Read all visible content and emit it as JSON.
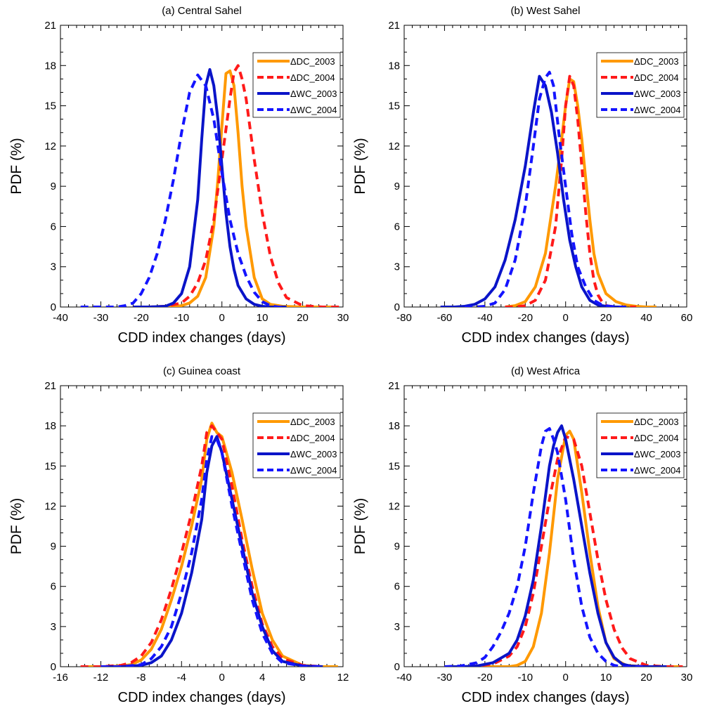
{
  "figure": {
    "series_names": [
      "ΔDC_2003",
      "ΔDC_2004",
      "ΔWC_2003",
      "ΔWC_2004"
    ],
    "colors": {
      "DC_2003": "#ff9900",
      "DC_2004": "#ff1a1a",
      "WC_2003": "#0a14c8",
      "WC_2004": "#1414ff"
    }
  },
  "chart_data": [
    {
      "type": "line",
      "title": "(a) Central Sahel",
      "xlabel": "CDD index changes  (days)",
      "ylabel": "PDF (%)",
      "xlim": [
        -40,
        30
      ],
      "ylim": [
        0,
        21
      ],
      "xticks": [
        -40,
        -30,
        -20,
        -10,
        0,
        10,
        20,
        30
      ],
      "yticks": [
        0,
        3,
        6,
        9,
        12,
        15,
        18,
        21
      ],
      "legend_position": "top-right",
      "series": [
        {
          "name": "ΔDC_2003",
          "style": "solid",
          "color": "#ff9900",
          "x": [
            -22,
            -18,
            -14,
            -10,
            -8,
            -6,
            -4,
            -2,
            -1,
            0,
            1,
            2,
            3,
            4,
            5,
            6,
            8,
            10,
            12,
            15,
            20,
            25,
            29
          ],
          "y": [
            0,
            0,
            0,
            0.1,
            0.3,
            0.8,
            2.2,
            6.0,
            9.5,
            13.5,
            17.4,
            17.6,
            16.5,
            13.0,
            9.0,
            6.0,
            2.2,
            0.6,
            0.2,
            0.05,
            0,
            0,
            0
          ]
        },
        {
          "name": "ΔDC_2004",
          "style": "dashed",
          "color": "#ff1a1a",
          "x": [
            -22,
            -18,
            -14,
            -10,
            -8,
            -6,
            -4,
            -2,
            0,
            2,
            3,
            4,
            5,
            6,
            8,
            10,
            12,
            14,
            16,
            20,
            25,
            29
          ],
          "y": [
            0,
            0,
            0.05,
            0.3,
            0.8,
            1.8,
            3.5,
            6.5,
            11.0,
            15.5,
            17.5,
            18.0,
            17.0,
            15.5,
            11.0,
            7.0,
            3.8,
            1.8,
            0.7,
            0.1,
            0,
            0
          ]
        },
        {
          "name": "ΔWC_2003",
          "style": "solid",
          "color": "#0a14c8",
          "x": [
            -22,
            -18,
            -14,
            -12,
            -10,
            -8,
            -6,
            -5,
            -4,
            -3,
            -2,
            -1,
            0,
            1,
            2,
            3,
            4,
            6,
            8,
            10,
            12,
            14,
            16
          ],
          "y": [
            0,
            0,
            0.05,
            0.3,
            1.0,
            3.0,
            8.0,
            12.5,
            16.5,
            17.7,
            16.5,
            14.0,
            10.5,
            7.0,
            4.5,
            2.8,
            1.6,
            0.6,
            0.2,
            0.05,
            0,
            0,
            0
          ]
        },
        {
          "name": "ΔWC_2004",
          "style": "dashed",
          "color": "#1414ff",
          "x": [
            -35,
            -30,
            -26,
            -24,
            -22,
            -20,
            -18,
            -16,
            -14,
            -12,
            -10,
            -8,
            -6,
            -4,
            -2,
            0,
            2,
            4,
            6,
            8,
            10,
            12,
            14,
            16
          ],
          "y": [
            0,
            0,
            0,
            0.1,
            0.3,
            1.0,
            2.2,
            4.0,
            6.5,
            9.5,
            13.0,
            16.0,
            17.3,
            16.5,
            14.0,
            10.0,
            6.5,
            4.0,
            2.3,
            1.1,
            0.4,
            0.1,
            0,
            0
          ]
        }
      ]
    },
    {
      "type": "line",
      "title": "(b) West Sahel",
      "xlabel": "CDD index changes (days)",
      "ylabel": "PDF (%)",
      "xlim": [
        -80,
        60
      ],
      "ylim": [
        0,
        21
      ],
      "xticks": [
        -80,
        -60,
        -40,
        -20,
        0,
        20,
        40,
        60
      ],
      "yticks": [
        0,
        3,
        6,
        9,
        12,
        15,
        18,
        21
      ],
      "legend_position": "top-right",
      "series": [
        {
          "name": "ΔDC_2003",
          "style": "solid",
          "color": "#ff9900",
          "x": [
            -30,
            -25,
            -20,
            -15,
            -10,
            -5,
            -2,
            0,
            2,
            4,
            6,
            8,
            10,
            12,
            14,
            16,
            20,
            25,
            30,
            35,
            40,
            45
          ],
          "y": [
            0,
            0.1,
            0.4,
            1.5,
            4.0,
            9.0,
            12.5,
            15.0,
            17.0,
            16.8,
            15.0,
            12.5,
            9.5,
            6.5,
            4.0,
            2.5,
            1.0,
            0.4,
            0.15,
            0.05,
            0,
            0
          ]
        },
        {
          "name": "ΔDC_2004",
          "style": "dashed",
          "color": "#ff1a1a",
          "x": [
            -30,
            -25,
            -20,
            -15,
            -10,
            -5,
            -2,
            0,
            2,
            4,
            6,
            8,
            10,
            12,
            14,
            16,
            18,
            20,
            25,
            30,
            35
          ],
          "y": [
            0,
            0,
            0.1,
            0.5,
            2.0,
            6.0,
            11.0,
            15.0,
            17.2,
            16.5,
            14.0,
            10.5,
            7.0,
            4.0,
            2.0,
            0.9,
            0.4,
            0.1,
            0,
            0,
            0
          ]
        },
        {
          "name": "ΔWC_2003",
          "style": "solid",
          "color": "#0a14c8",
          "x": [
            -62,
            -55,
            -50,
            -45,
            -40,
            -35,
            -30,
            -25,
            -20,
            -16,
            -13,
            -10,
            -7,
            -4,
            -1,
            2,
            5,
            8,
            12,
            16,
            20,
            25,
            30
          ],
          "y": [
            0,
            0,
            0.05,
            0.2,
            0.6,
            1.5,
            3.5,
            6.5,
            10.5,
            14.5,
            17.2,
            16.5,
            14.5,
            11.5,
            8.0,
            5.0,
            3.0,
            1.5,
            0.5,
            0.15,
            0.05,
            0,
            0
          ]
        },
        {
          "name": "ΔWC_2004",
          "style": "dashed",
          "color": "#1414ff",
          "x": [
            -50,
            -45,
            -40,
            -35,
            -30,
            -25,
            -20,
            -16,
            -13,
            -10,
            -8,
            -6,
            -3,
            0,
            3,
            6,
            10,
            14,
            18,
            22,
            26,
            30
          ],
          "y": [
            0,
            0,
            0.05,
            0.3,
            1.3,
            3.5,
            7.5,
            12.0,
            15.5,
            17.1,
            17.5,
            16.5,
            12.5,
            9.0,
            5.5,
            3.0,
            1.5,
            0.5,
            0.15,
            0.05,
            0,
            0
          ]
        }
      ]
    },
    {
      "type": "line",
      "title": "(c) Guinea coast",
      "xlabel": "CDD index changes (days)",
      "ylabel": "PDF (%)",
      "xlim": [
        -16,
        12
      ],
      "ylim": [
        0,
        21
      ],
      "xticks": [
        -16,
        -12,
        -8,
        -4,
        0,
        4,
        8,
        12
      ],
      "yticks": [
        0,
        3,
        6,
        9,
        12,
        15,
        18,
        21
      ],
      "legend_position": "top-right",
      "series": [
        {
          "name": "ΔDC_2003",
          "style": "solid",
          "color": "#ff9900",
          "x": [
            -14,
            -12,
            -10,
            -9,
            -8,
            -7,
            -6,
            -5,
            -4,
            -3,
            -2,
            -1.5,
            -1,
            -0.5,
            0,
            1,
            2,
            3,
            4,
            5,
            6,
            8,
            10,
            11.5
          ],
          "y": [
            0,
            0,
            0.05,
            0.15,
            0.5,
            1.3,
            2.8,
            5.0,
            7.5,
            10.5,
            14.0,
            17.0,
            18.2,
            17.5,
            17.2,
            14.5,
            11.0,
            7.3,
            4.0,
            2.0,
            0.8,
            0.1,
            0,
            0
          ]
        },
        {
          "name": "ΔDC_2004",
          "style": "dashed",
          "color": "#ff1a1a",
          "x": [
            -14,
            -12,
            -10,
            -9,
            -8,
            -7,
            -6,
            -5,
            -4,
            -3,
            -2,
            -1.5,
            -1,
            0,
            1,
            2,
            3,
            4,
            5,
            6,
            8,
            10
          ],
          "y": [
            0,
            0,
            0.1,
            0.3,
            0.8,
            1.8,
            3.5,
            5.8,
            8.5,
            11.5,
            15.0,
            17.5,
            18.0,
            17.0,
            13.5,
            9.5,
            6.0,
            3.2,
            1.5,
            0.6,
            0.1,
            0
          ]
        },
        {
          "name": "ΔWC_2003",
          "style": "solid",
          "color": "#0a14c8",
          "x": [
            -12,
            -10,
            -8,
            -7,
            -6,
            -5,
            -4,
            -3,
            -2,
            -1.5,
            -1,
            -0.5,
            0,
            1,
            2,
            3,
            4,
            5,
            6,
            8,
            10
          ],
          "y": [
            0,
            0,
            0.1,
            0.3,
            0.8,
            2.0,
            4.0,
            7.0,
            11.0,
            14.5,
            16.5,
            17.2,
            16.0,
            12.5,
            9.0,
            5.5,
            3.0,
            1.2,
            0.4,
            0.05,
            0
          ]
        },
        {
          "name": "ΔWC_2004",
          "style": "dashed",
          "color": "#1414ff",
          "x": [
            -12,
            -10,
            -8,
            -7,
            -6,
            -5,
            -4,
            -3,
            -2,
            -1.5,
            -1,
            -0.5,
            0,
            1,
            2,
            3,
            4,
            5,
            6,
            8,
            10
          ],
          "y": [
            0,
            0,
            0.15,
            0.6,
            1.5,
            3.0,
            5.5,
            8.5,
            12.5,
            15.5,
            17.2,
            17.0,
            16.0,
            12.0,
            8.5,
            5.0,
            2.5,
            1.0,
            0.3,
            0.05,
            0
          ]
        }
      ]
    },
    {
      "type": "line",
      "title": "(d) West Africa",
      "xlabel": "CDD index changes (days)",
      "ylabel": "PDF (%)",
      "xlim": [
        -40,
        30
      ],
      "ylim": [
        0,
        21
      ],
      "xticks": [
        -40,
        -30,
        -20,
        -10,
        0,
        10,
        20,
        30
      ],
      "yticks": [
        0,
        3,
        6,
        9,
        12,
        15,
        18,
        21
      ],
      "legend_position": "top-right",
      "series": [
        {
          "name": "ΔDC_2003",
          "style": "solid",
          "color": "#ff9900",
          "x": [
            -22,
            -18,
            -14,
            -12,
            -10,
            -8,
            -6,
            -4,
            -2,
            0,
            1,
            2,
            4,
            6,
            8,
            10,
            12,
            15,
            20,
            25,
            29
          ],
          "y": [
            0,
            0,
            0,
            0.1,
            0.4,
            1.5,
            4.0,
            8.5,
            14.0,
            17.3,
            17.6,
            17.0,
            13.0,
            8.5,
            4.5,
            1.8,
            0.6,
            0.1,
            0,
            0,
            0
          ]
        },
        {
          "name": "ΔDC_2004",
          "style": "dashed",
          "color": "#ff1a1a",
          "x": [
            -30,
            -26,
            -22,
            -18,
            -14,
            -12,
            -10,
            -8,
            -6,
            -4,
            -2,
            0,
            2,
            4,
            6,
            8,
            10,
            12,
            14,
            16,
            20,
            25,
            29
          ],
          "y": [
            0,
            0,
            0.05,
            0.2,
            0.8,
            1.5,
            3.0,
            5.5,
            9.0,
            12.5,
            15.5,
            17.2,
            17.0,
            15.0,
            11.5,
            8.0,
            5.0,
            2.8,
            1.4,
            0.6,
            0.1,
            0,
            0
          ]
        },
        {
          "name": "ΔWC_2003",
          "style": "solid",
          "color": "#0a14c8",
          "x": [
            -30,
            -26,
            -22,
            -18,
            -14,
            -12,
            -10,
            -8,
            -6,
            -4,
            -3,
            -2,
            -1,
            0,
            2,
            4,
            6,
            8,
            10,
            12,
            14,
            16,
            20,
            25
          ],
          "y": [
            0,
            0,
            0.05,
            0.3,
            1.0,
            2.0,
            3.8,
            6.5,
            10.5,
            15.0,
            16.5,
            17.5,
            18.0,
            17.0,
            14.0,
            10.5,
            7.0,
            4.0,
            1.8,
            0.7,
            0.2,
            0.05,
            0,
            0
          ]
        },
        {
          "name": "ΔWC_2004",
          "style": "dashed",
          "color": "#1414ff",
          "x": [
            -30,
            -26,
            -22,
            -20,
            -18,
            -16,
            -14,
            -12,
            -10,
            -8,
            -6,
            -5,
            -4,
            -3,
            -2,
            0,
            2,
            4,
            6,
            8,
            10,
            12,
            14,
            16,
            20
          ],
          "y": [
            0,
            0.05,
            0.3,
            0.7,
            1.5,
            2.6,
            4.0,
            6.0,
            9.0,
            13.0,
            16.5,
            17.6,
            17.8,
            17.0,
            16.0,
            12.5,
            8.0,
            4.5,
            2.2,
            1.0,
            0.4,
            0.1,
            0,
            0,
            0
          ]
        }
      ]
    }
  ]
}
